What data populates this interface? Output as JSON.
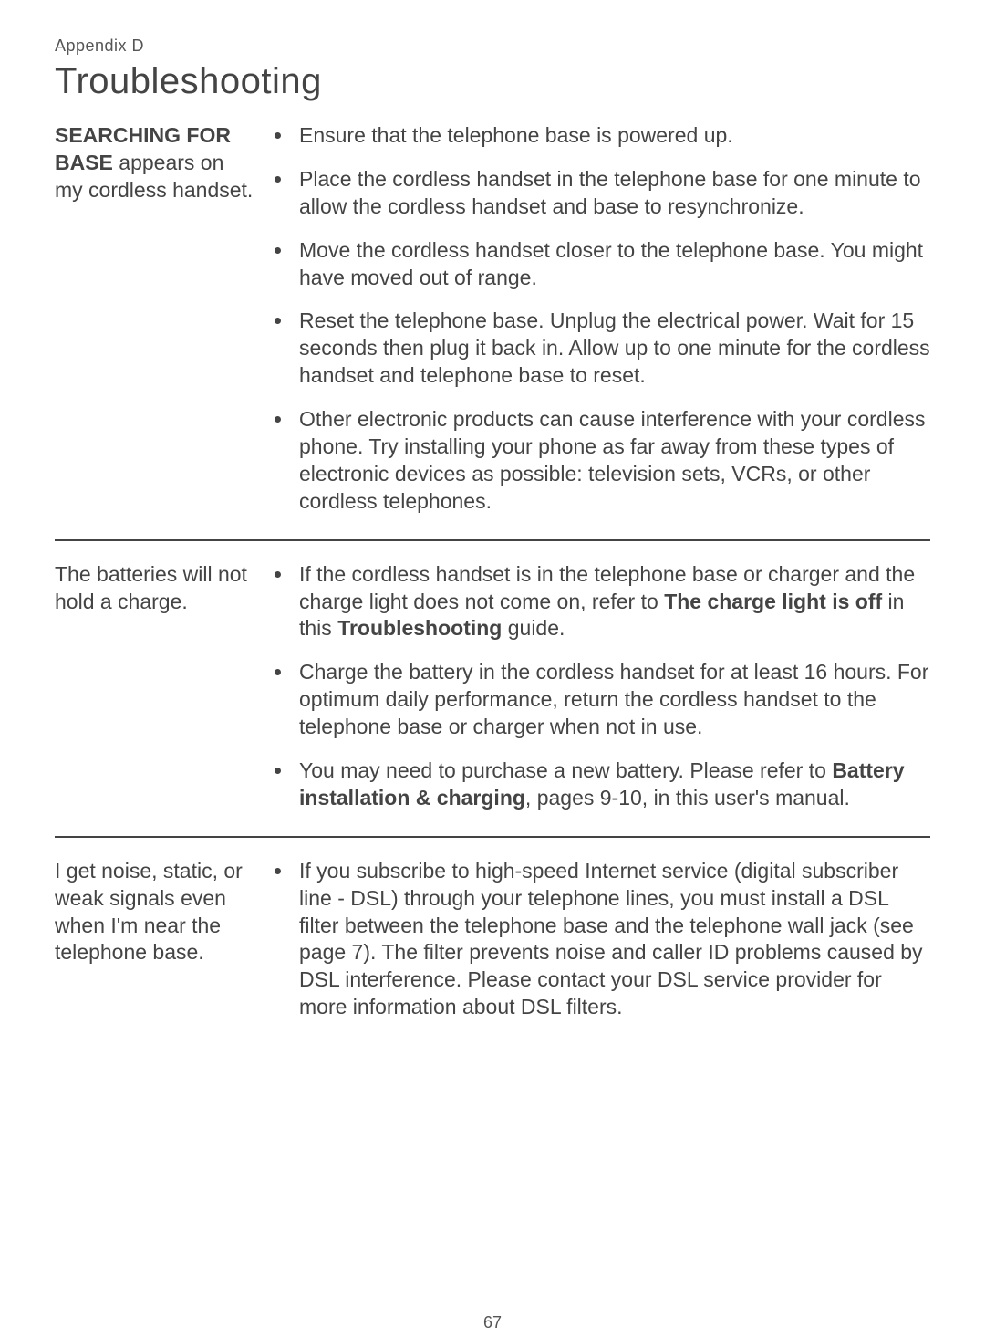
{
  "appendix_label": "Appendix D",
  "page_title": "Troubleshooting",
  "page_number": "67",
  "sections": [
    {
      "heading_bold": "SEARCHING FOR BASE",
      "heading_rest": " appears on my cordless handset.",
      "bullets": [
        {
          "text": "Ensure that the telephone base is powered up."
        },
        {
          "text": "Place the cordless handset in the telephone base for one minute to allow the cordless handset and base to resynchronize."
        },
        {
          "text": "Move the cordless handset closer to the telephone base. You might have moved out of range."
        },
        {
          "text": "Reset the telephone base. Unplug the electrical power. Wait for 15 seconds then plug it back in. Allow up to one minute for the cordless handset and telephone base to reset."
        },
        {
          "text": "Other electronic products can cause interference with your cordless phone. Try installing your phone as far away from these types of electronic devices as possible: television sets, VCRs, or other cordless telephones."
        }
      ]
    },
    {
      "heading_bold": "",
      "heading_rest": "The batteries will not hold a charge.",
      "bullets": [
        {
          "pre": "If the cordless handset is in the telephone base or charger and the charge light does not come on, refer to ",
          "bold1": "The charge light is off",
          "mid1": " in this ",
          "bold2": "Troubleshooting",
          "post": " guide."
        },
        {
          "text": "Charge the battery in the cordless handset for at least 16 hours. For optimum daily performance, return the cordless handset to the telephone base or charger when not in use."
        },
        {
          "pre": "You may need to purchase a new battery. Please refer to ",
          "bold1": "Battery installation & charging",
          "post": ", pages 9-10, in this user's manual."
        }
      ]
    },
    {
      "heading_bold": "",
      "heading_rest": "I get noise, static, or weak signals even when I'm near the telephone base.",
      "bullets": [
        {
          "text": "If you subscribe to high-speed Internet service (digital subscriber line - DSL) through your telephone lines, you must install a DSL filter between the telephone base and the telephone wall jack (see page 7). The filter prevents noise and caller ID problems caused by DSL interference. Please contact your DSL service provider for more information about DSL filters."
        }
      ]
    }
  ]
}
